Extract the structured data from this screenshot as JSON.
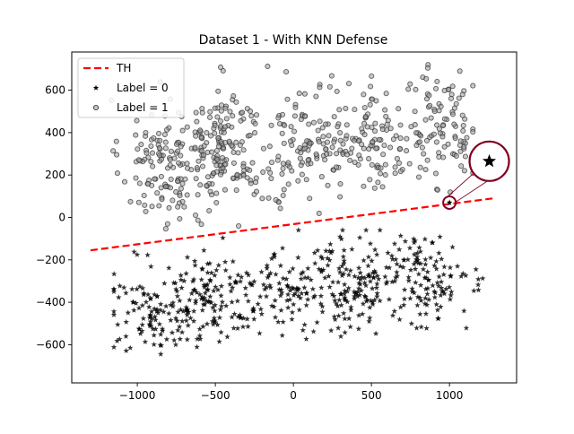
{
  "chart_data": {
    "type": "scatter",
    "title": "Dataset 1 - With KNN Defense",
    "xlabel": "",
    "ylabel": "",
    "xlim": [
      -1420,
      1430
    ],
    "ylim": [
      -780,
      780
    ],
    "xticks": [
      -1000,
      -500,
      0,
      500,
      1000
    ],
    "yticks": [
      -600,
      -400,
      -200,
      0,
      200,
      400,
      600
    ],
    "xtick_labels": [
      "−1000",
      "−500",
      "0",
      "500",
      "1000"
    ],
    "ytick_labels": [
      "−600",
      "−400",
      "−200",
      "0",
      "200",
      "400",
      "600"
    ],
    "grid": false,
    "legend_position": "upper-left",
    "series": [
      {
        "name": "TH",
        "kind": "line",
        "style": "dashed",
        "color": "#ff0000",
        "x": [
          -1300,
          1280
        ],
        "y": [
          -155,
          90
        ]
      },
      {
        "name": "Label = 0",
        "kind": "scatter",
        "marker": "star",
        "color": "#000000",
        "count_estimate": 600,
        "x_range": [
          -1150,
          1230
        ],
        "y_range": [
          -710,
          -60
        ],
        "clusters": [
          {
            "cx": -900,
            "cy": -430,
            "sx": 140,
            "sy": 110,
            "n": 110
          },
          {
            "cx": -500,
            "cy": -380,
            "sx": 140,
            "sy": 100,
            "n": 120
          },
          {
            "cx": -50,
            "cy": -330,
            "sx": 180,
            "sy": 110,
            "n": 110
          },
          {
            "cx": 380,
            "cy": -320,
            "sx": 130,
            "sy": 110,
            "n": 130
          },
          {
            "cx": 850,
            "cy": -300,
            "sx": 150,
            "sy": 100,
            "n": 130
          }
        ]
      },
      {
        "name": "Label = 1",
        "kind": "scatter",
        "marker": "circle",
        "color": "#808080",
        "count_estimate": 600,
        "x_range": [
          -1200,
          1150
        ],
        "y_range": [
          -130,
          720
        ],
        "clusters": [
          {
            "cx": -850,
            "cy": 260,
            "sx": 130,
            "sy": 150,
            "n": 120
          },
          {
            "cx": -450,
            "cy": 330,
            "sx": 120,
            "sy": 140,
            "n": 150
          },
          {
            "cx": 50,
            "cy": 320,
            "sx": 200,
            "sy": 140,
            "n": 120
          },
          {
            "cx": 500,
            "cy": 380,
            "sx": 180,
            "sy": 130,
            "n": 110
          },
          {
            "cx": 950,
            "cy": 420,
            "sx": 130,
            "sy": 140,
            "n": 100
          }
        ]
      }
    ],
    "annotations": [
      {
        "label": "highlighted point",
        "marker": "star",
        "x": 1000,
        "y": 70,
        "circle_color": "#800020",
        "zoom_inset_center": [
          1255,
          265
        ]
      }
    ]
  },
  "legend": {
    "items": [
      {
        "label": "TH",
        "symbol": "dashed-line",
        "color": "#ff0000"
      },
      {
        "label": "Label = 0",
        "symbol": "star",
        "color": "#000000"
      },
      {
        "label": "Label = 1",
        "symbol": "circle",
        "color": "#808080"
      }
    ]
  }
}
